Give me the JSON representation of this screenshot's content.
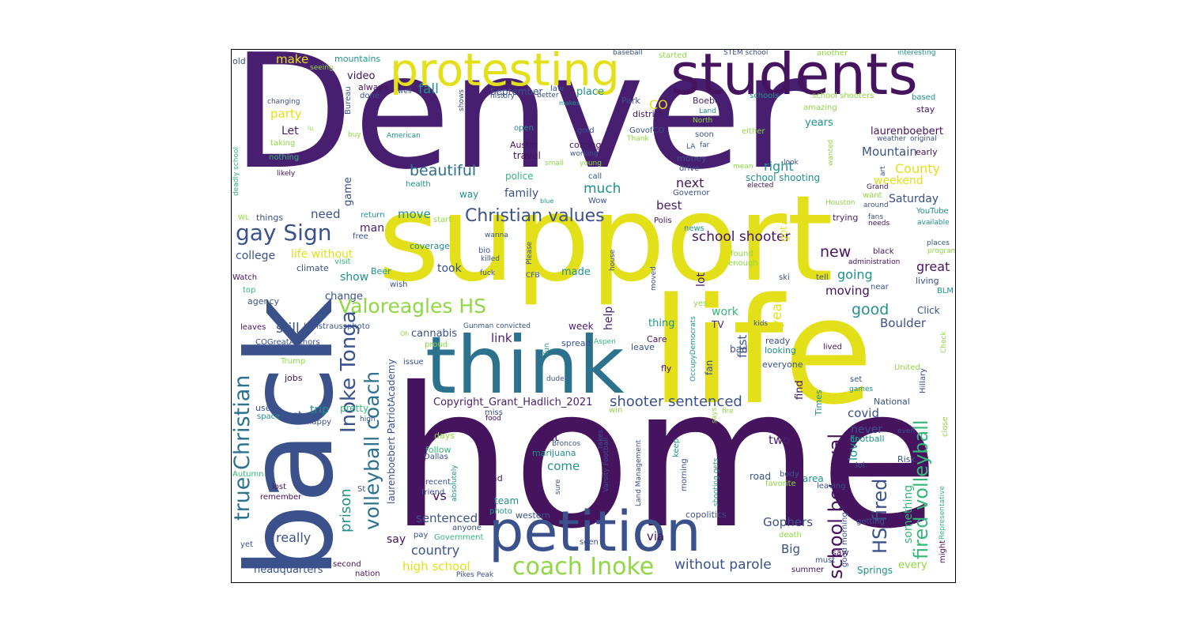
{
  "palette": {
    "indigo": "#46135f",
    "purple": "#481f70",
    "slate": "#3b518b",
    "blue": "#2c728e",
    "teal": "#21918c",
    "green": "#35b779",
    "lime": "#8fd744",
    "yellow": "#e3e01a"
  },
  "words": [
    {
      "text": "Denver",
      "color": "purple"
    },
    {
      "text": "home",
      "color": "indigo"
    },
    {
      "text": "support",
      "color": "yellow"
    },
    {
      "text": "back",
      "color": "slate"
    },
    {
      "text": "life",
      "color": "yellow"
    },
    {
      "text": "think",
      "color": "blue"
    },
    {
      "text": "petition",
      "color": "slate"
    },
    {
      "text": "students",
      "color": "indigo"
    },
    {
      "text": "protesting",
      "color": "yellow"
    },
    {
      "text": "coach Inoke",
      "color": "lime"
    },
    {
      "text": "Christian values",
      "color": "slate"
    },
    {
      "text": "gay Sign",
      "color": "slate"
    },
    {
      "text": "Valoreagles HS",
      "color": "lime"
    },
    {
      "text": "true Christian",
      "color": "blue"
    },
    {
      "text": "Inoke Tonga",
      "color": "slate"
    },
    {
      "text": "volleyball coach",
      "color": "blue"
    },
    {
      "text": "school betrayal",
      "color": "indigo"
    },
    {
      "text": "HS fired",
      "color": "slate"
    },
    {
      "text": "fired volleyball",
      "color": "green"
    },
    {
      "text": "shooter sentenced",
      "color": "slate"
    },
    {
      "text": "school shooter",
      "color": "indigo"
    },
    {
      "text": "Copyright_Grant_Hadlich_2021",
      "color": "purple"
    },
    {
      "text": "beautiful",
      "color": "blue"
    },
    {
      "text": "without parole",
      "color": "slate"
    },
    {
      "text": "high school",
      "color": "yellow"
    },
    {
      "text": "prison",
      "color": "teal"
    },
    {
      "text": "laurenboebert PatriotAcademy",
      "color": "slate"
    },
    {
      "text": "fall",
      "color": "teal"
    },
    {
      "text": "make",
      "color": "yellow"
    },
    {
      "text": "video",
      "color": "indigo"
    },
    {
      "text": "CO",
      "color": "yellow"
    },
    {
      "text": "party",
      "color": "yellow"
    },
    {
      "text": "Let",
      "color": "purple"
    },
    {
      "text": "much",
      "color": "teal"
    },
    {
      "text": "family",
      "color": "slate"
    },
    {
      "text": "move",
      "color": "teal"
    },
    {
      "text": "need",
      "color": "slate"
    },
    {
      "text": "man",
      "color": "purple"
    },
    {
      "text": "college",
      "color": "slate"
    },
    {
      "text": "life without",
      "color": "yellow"
    },
    {
      "text": "show",
      "color": "teal"
    },
    {
      "text": "change",
      "color": "slate"
    },
    {
      "text": "still",
      "color": "slate"
    },
    {
      "text": "link",
      "color": "purple"
    },
    {
      "text": "cannabis",
      "color": "slate"
    },
    {
      "text": "next",
      "color": "indigo"
    },
    {
      "text": "best",
      "color": "purple"
    },
    {
      "text": "right",
      "color": "teal"
    },
    {
      "text": "County",
      "color": "yellow"
    },
    {
      "text": "weekend",
      "color": "yellow"
    },
    {
      "text": "Saturday",
      "color": "slate"
    },
    {
      "text": "Mountain",
      "color": "slate"
    },
    {
      "text": "new",
      "color": "indigo"
    },
    {
      "text": "going",
      "color": "teal"
    },
    {
      "text": "moving",
      "color": "indigo"
    },
    {
      "text": "good",
      "color": "teal"
    },
    {
      "text": "great",
      "color": "indigo"
    },
    {
      "text": "Boulder",
      "color": "slate"
    },
    {
      "text": "year",
      "color": "yellow"
    },
    {
      "text": "help",
      "color": "purple"
    },
    {
      "text": "first",
      "color": "slate"
    },
    {
      "text": "find",
      "color": "indigo"
    },
    {
      "text": "covid",
      "color": "slate"
    },
    {
      "text": "never",
      "color": "slate"
    },
    {
      "text": "love",
      "color": "teal"
    },
    {
      "text": "Gophers",
      "color": "slate"
    },
    {
      "text": "two",
      "color": "purple"
    },
    {
      "text": "Big",
      "color": "slate"
    },
    {
      "text": "last",
      "color": "indigo"
    },
    {
      "text": "come",
      "color": "teal"
    },
    {
      "text": "sentenced",
      "color": "slate"
    },
    {
      "text": "country",
      "color": "slate"
    },
    {
      "text": "say",
      "color": "indigo"
    },
    {
      "text": "vs",
      "color": "indigo"
    },
    {
      "text": "via",
      "color": "indigo"
    },
    {
      "text": "really",
      "color": "slate"
    },
    {
      "text": "trip",
      "color": "teal"
    },
    {
      "text": "took",
      "color": "slate"
    },
    {
      "text": "made",
      "color": "teal"
    },
    {
      "text": "work",
      "color": "green"
    },
    {
      "text": "something",
      "color": "green"
    },
    {
      "text": "every",
      "color": "lime"
    },
    {
      "text": "headquarters",
      "color": "slate"
    },
    {
      "text": "school shooting",
      "color": "teal"
    },
    {
      "text": "laurenboebert",
      "color": "indigo"
    },
    {
      "text": "district",
      "color": "indigo"
    },
    {
      "text": "game",
      "color": "slate"
    },
    {
      "text": "police",
      "color": "green"
    },
    {
      "text": "Austin",
      "color": "indigo"
    },
    {
      "text": "travel",
      "color": "indigo"
    },
    {
      "text": "coming",
      "color": "indigo"
    },
    {
      "text": "September",
      "color": "slate"
    },
    {
      "text": "place",
      "color": "teal"
    },
    {
      "text": "Boebert",
      "color": "purple"
    },
    {
      "text": "mountains",
      "color": "teal"
    },
    {
      "text": "Park",
      "color": "slate"
    },
    {
      "text": "years",
      "color": "teal"
    },
    {
      "text": "stay",
      "color": "indigo"
    },
    {
      "text": "lot",
      "color": "indigo"
    },
    {
      "text": "jobs",
      "color": "indigo"
    },
    {
      "text": "post",
      "color": "slate"
    },
    {
      "text": "pretty",
      "color": "green"
    },
    {
      "text": "fan",
      "color": "slate"
    },
    {
      "text": "TV",
      "color": "purple"
    },
    {
      "text": "bad",
      "color": "slate"
    },
    {
      "text": "thing",
      "color": "teal"
    },
    {
      "text": "week",
      "color": "purple"
    },
    {
      "text": "ready",
      "color": "slate"
    },
    {
      "text": "looking",
      "color": "teal"
    },
    {
      "text": "everyone",
      "color": "slate"
    },
    {
      "text": "Click",
      "color": "slate"
    },
    {
      "text": "living",
      "color": "slate"
    },
    {
      "text": "Football",
      "color": "teal"
    },
    {
      "text": "National",
      "color": "slate"
    },
    {
      "text": "Times",
      "color": "teal"
    },
    {
      "text": "got",
      "color": "yellow"
    },
    {
      "text": "trying",
      "color": "purple"
    },
    {
      "text": "things",
      "color": "slate"
    },
    {
      "text": "way",
      "color": "teal"
    },
    {
      "text": "Risk",
      "color": "slate"
    },
    {
      "text": "road",
      "color": "slate"
    },
    {
      "text": "area",
      "color": "teal"
    },
    {
      "text": "saw",
      "color": "indigo"
    },
    {
      "text": "Springs",
      "color": "teal"
    },
    {
      "text": "team",
      "color": "teal"
    },
    {
      "text": "western",
      "color": "slate"
    },
    {
      "text": "copolitics",
      "color": "slate"
    },
    {
      "text": "follow",
      "color": "green"
    },
    {
      "text": "dad",
      "color": "indigo"
    },
    {
      "text": "days",
      "color": "lime"
    },
    {
      "text": "marijuana",
      "color": "teal"
    },
    {
      "text": "fly",
      "color": "indigo"
    },
    {
      "text": "spread",
      "color": "slate"
    },
    {
      "text": "Care",
      "color": "indigo"
    },
    {
      "text": "leave",
      "color": "slate"
    },
    {
      "text": "issue",
      "color": "slate"
    },
    {
      "text": "proud",
      "color": "lime"
    },
    {
      "text": "visit",
      "color": "green"
    },
    {
      "text": "Beer",
      "color": "teal"
    },
    {
      "text": "climate",
      "color": "slate"
    },
    {
      "text": "Watch",
      "color": "indigo"
    },
    {
      "text": "top",
      "color": "green"
    },
    {
      "text": "agency",
      "color": "slate"
    },
    {
      "text": "leaves",
      "color": "indigo"
    },
    {
      "text": "benstraussphoto",
      "color": "slate"
    },
    {
      "text": "COGreatAuthors",
      "color": "slate"
    },
    {
      "text": "actually",
      "color": "slate"
    },
    {
      "text": "Trump",
      "color": "lime"
    },
    {
      "text": "used",
      "color": "slate"
    },
    {
      "text": "space",
      "color": "teal"
    },
    {
      "text": "happy",
      "color": "slate"
    },
    {
      "text": "Autumn",
      "color": "green"
    },
    {
      "text": "lost",
      "color": "indigo"
    },
    {
      "text": "remember",
      "color": "indigo"
    },
    {
      "text": "yet",
      "color": "slate"
    },
    {
      "text": "second",
      "color": "indigo"
    },
    {
      "text": "nation",
      "color": "indigo"
    },
    {
      "text": "St",
      "color": "slate"
    },
    {
      "text": "Pikes Peak",
      "color": "slate"
    },
    {
      "text": "friend",
      "color": "slate"
    },
    {
      "text": "recent",
      "color": "slate"
    },
    {
      "text": "Dallas",
      "color": "slate"
    },
    {
      "text": "Government",
      "color": "green"
    },
    {
      "text": "anyone",
      "color": "slate"
    },
    {
      "text": "photo",
      "color": "teal"
    },
    {
      "text": "pay",
      "color": "slate"
    },
    {
      "text": "seen",
      "color": "slate"
    },
    {
      "text": "death",
      "color": "lime"
    },
    {
      "text": "body",
      "color": "slate"
    },
    {
      "text": "favorite",
      "color": "lime"
    },
    {
      "text": "leaving",
      "color": "slate"
    },
    {
      "text": "must",
      "color": "slate"
    },
    {
      "text": "summer",
      "color": "indigo"
    },
    {
      "text": "good morning",
      "color": "slate"
    },
    {
      "text": "getting",
      "color": "slate"
    },
    {
      "text": "lol",
      "color": "slate"
    },
    {
      "text": "even",
      "color": "slate"
    },
    {
      "text": "close",
      "color": "lime"
    },
    {
      "text": "might",
      "color": "indigo"
    },
    {
      "text": "Representative",
      "color": "green"
    },
    {
      "text": "United",
      "color": "lime"
    },
    {
      "text": "Hillary",
      "color": "slate"
    },
    {
      "text": "Check",
      "color": "lime"
    },
    {
      "text": "games",
      "color": "teal"
    },
    {
      "text": "set",
      "color": "slate"
    },
    {
      "text": "lived",
      "color": "indigo"
    },
    {
      "text": "BLM",
      "color": "teal"
    },
    {
      "text": "near",
      "color": "slate"
    },
    {
      "text": "black",
      "color": "indigo"
    },
    {
      "text": "administration",
      "color": "indigo"
    },
    {
      "text": "tell",
      "color": "slate"
    },
    {
      "text": "ski",
      "color": "slate"
    },
    {
      "text": "enough",
      "color": "lime"
    },
    {
      "text": "found",
      "color": "lime"
    },
    {
      "text": "kids",
      "color": "slate"
    },
    {
      "text": "OccupyDemocrats",
      "color": "teal"
    },
    {
      "text": "yes",
      "color": "lime"
    },
    {
      "text": "Polis",
      "color": "indigo"
    },
    {
      "text": "news",
      "color": "teal"
    },
    {
      "text": "Governor",
      "color": "slate"
    },
    {
      "text": "drive",
      "color": "slate"
    },
    {
      "text": "money",
      "color": "slate"
    },
    {
      "text": "LA",
      "color": "slate"
    },
    {
      "text": "far",
      "color": "slate"
    },
    {
      "text": "mean",
      "color": "lime"
    },
    {
      "text": "elected",
      "color": "indigo"
    },
    {
      "text": "look",
      "color": "slate"
    },
    {
      "text": "art",
      "color": "slate"
    },
    {
      "text": "want",
      "color": "lime"
    },
    {
      "text": "around",
      "color": "slate"
    },
    {
      "text": "Grand",
      "color": "indigo"
    },
    {
      "text": "Houston",
      "color": "lime"
    },
    {
      "text": "fans",
      "color": "slate"
    },
    {
      "text": "needs",
      "color": "indigo"
    },
    {
      "text": "available",
      "color": "teal"
    },
    {
      "text": "YouTube",
      "color": "teal"
    },
    {
      "text": "places",
      "color": "slate"
    },
    {
      "text": "program",
      "color": "lime"
    },
    {
      "text": "weather",
      "color": "slate"
    },
    {
      "text": "original",
      "color": "slate"
    },
    {
      "text": "early",
      "color": "indigo"
    },
    {
      "text": "wanted",
      "color": "lime"
    },
    {
      "text": "based",
      "color": "teal"
    },
    {
      "text": "interesting",
      "color": "teal"
    },
    {
      "text": "another",
      "color": "lime"
    },
    {
      "text": "school shooters",
      "color": "lime"
    },
    {
      "text": "amazing",
      "color": "lime"
    },
    {
      "text": "North",
      "color": "lime"
    },
    {
      "text": "Land",
      "color": "teal"
    },
    {
      "text": "either",
      "color": "lime"
    },
    {
      "text": "soon",
      "color": "slate"
    },
    {
      "text": "GovofCO",
      "color": "slate"
    },
    {
      "text": "Thank",
      "color": "lime"
    },
    {
      "text": "gold",
      "color": "slate"
    },
    {
      "text": "open",
      "color": "teal"
    },
    {
      "text": "working",
      "color": "slate"
    },
    {
      "text": "small",
      "color": "lime"
    },
    {
      "text": "young",
      "color": "lime"
    },
    {
      "text": "call",
      "color": "slate"
    },
    {
      "text": "blue",
      "color": "teal"
    },
    {
      "text": "Wow",
      "color": "slate"
    },
    {
      "text": "health",
      "color": "teal"
    },
    {
      "text": "STEM school",
      "color": "slate"
    },
    {
      "text": "started",
      "color": "lime"
    },
    {
      "text": "baseball",
      "color": "slate"
    },
    {
      "text": "schools",
      "color": "teal"
    },
    {
      "text": "history",
      "color": "slate"
    },
    {
      "text": "law",
      "color": "slate"
    },
    {
      "text": "better",
      "color": "slate"
    },
    {
      "text": "makes",
      "color": "teal"
    },
    {
      "text": "shows",
      "color": "slate"
    },
    {
      "text": "well",
      "color": "slate"
    },
    {
      "text": "always",
      "color": "indigo"
    },
    {
      "text": "done",
      "color": "slate"
    },
    {
      "text": "Bureau",
      "color": "slate"
    },
    {
      "text": "buy",
      "color": "lime"
    },
    {
      "text": "American",
      "color": "teal"
    },
    {
      "text": "lu",
      "color": "lime"
    },
    {
      "text": "taking",
      "color": "lime"
    },
    {
      "text": "nothing",
      "color": "green"
    },
    {
      "text": "likely",
      "color": "indigo"
    },
    {
      "text": "changing",
      "color": "slate"
    },
    {
      "text": "old",
      "color": "slate"
    },
    {
      "text": "seeing",
      "color": "lime"
    },
    {
      "text": "deadly school",
      "color": "green"
    },
    {
      "text": "WL",
      "color": "lime"
    },
    {
      "text": "return",
      "color": "teal"
    },
    {
      "text": "free",
      "color": "slate"
    },
    {
      "text": "start",
      "color": "lime"
    },
    {
      "text": "wanna",
      "color": "slate"
    },
    {
      "text": "coverage",
      "color": "teal"
    },
    {
      "text": "bio",
      "color": "slate"
    },
    {
      "text": "killed",
      "color": "slate"
    },
    {
      "text": "Please",
      "color": "slate"
    },
    {
      "text": "fuck",
      "color": "slate"
    },
    {
      "text": "CFB",
      "color": "slate"
    },
    {
      "text": "house",
      "color": "slate"
    },
    {
      "text": "moved",
      "color": "slate"
    },
    {
      "text": "wish",
      "color": "slate"
    },
    {
      "text": "Gunman convicted",
      "color": "slate"
    },
    {
      "text": "Oh",
      "color": "lime"
    },
    {
      "text": "Aspen",
      "color": "green"
    },
    {
      "text": "fun",
      "color": "teal"
    },
    {
      "text": "dude",
      "color": "slate"
    },
    {
      "text": "win",
      "color": "lime"
    },
    {
      "text": "fire",
      "color": "lime"
    },
    {
      "text": "miss",
      "color": "slate"
    },
    {
      "text": "food",
      "color": "indigo"
    },
    {
      "text": "high",
      "color": "slate"
    },
    {
      "text": "Broncos",
      "color": "slate"
    },
    {
      "text": "takes",
      "color": "slate"
    },
    {
      "text": "Varsity Football",
      "color": "slate"
    },
    {
      "text": "Land Management",
      "color": "slate"
    },
    {
      "text": "keep",
      "color": "teal"
    },
    {
      "text": "morning",
      "color": "slate"
    },
    {
      "text": "sure",
      "color": "slate"
    },
    {
      "text": "absolutely",
      "color": "teal"
    },
    {
      "text": "says",
      "color": "lime"
    },
    {
      "text": "shooting gets",
      "color": "teal"
    }
  ]
}
